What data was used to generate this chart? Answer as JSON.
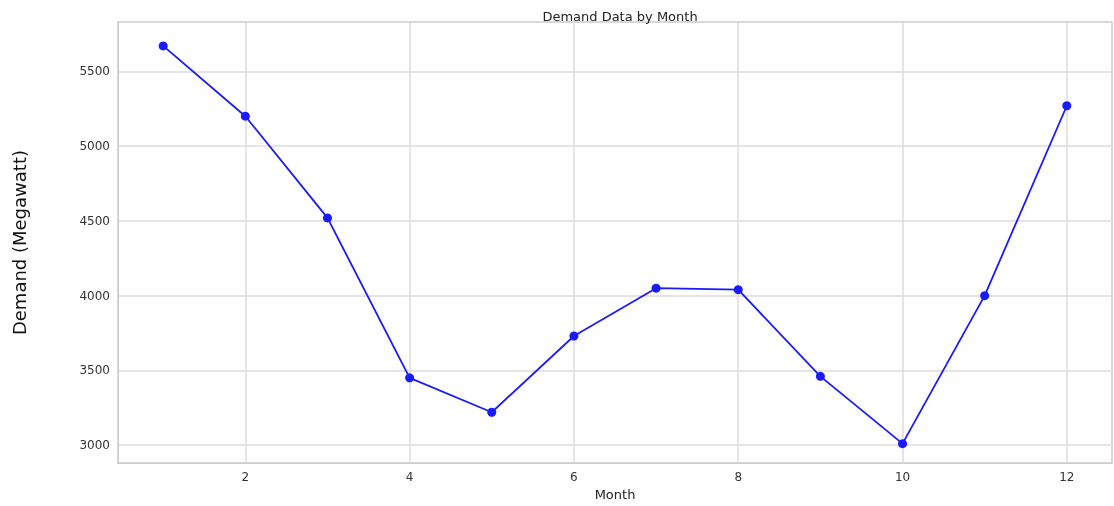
{
  "chart_data": {
    "type": "line",
    "title": "Demand Data by Month",
    "xlabel": "Month",
    "ylabel": "Demand (Megawatt)",
    "x": [
      1,
      2,
      3,
      4,
      5,
      6,
      7,
      8,
      9,
      10,
      11,
      12
    ],
    "series": [
      {
        "color": "#1a1aff",
        "values": [
          5670,
          5200,
          4520,
          3450,
          3220,
          3730,
          4050,
          4040,
          3460,
          3010,
          4000,
          5270
        ]
      }
    ],
    "xlim": [
      0.45,
      12.55
    ],
    "xticks": [
      2,
      4,
      6,
      8,
      10,
      12
    ],
    "ylim": [
      2880,
      5830
    ],
    "yticks": [
      3000,
      3500,
      4000,
      4500,
      5000,
      5500
    ],
    "grid": true,
    "marker": "circle",
    "line_style": "solid"
  }
}
